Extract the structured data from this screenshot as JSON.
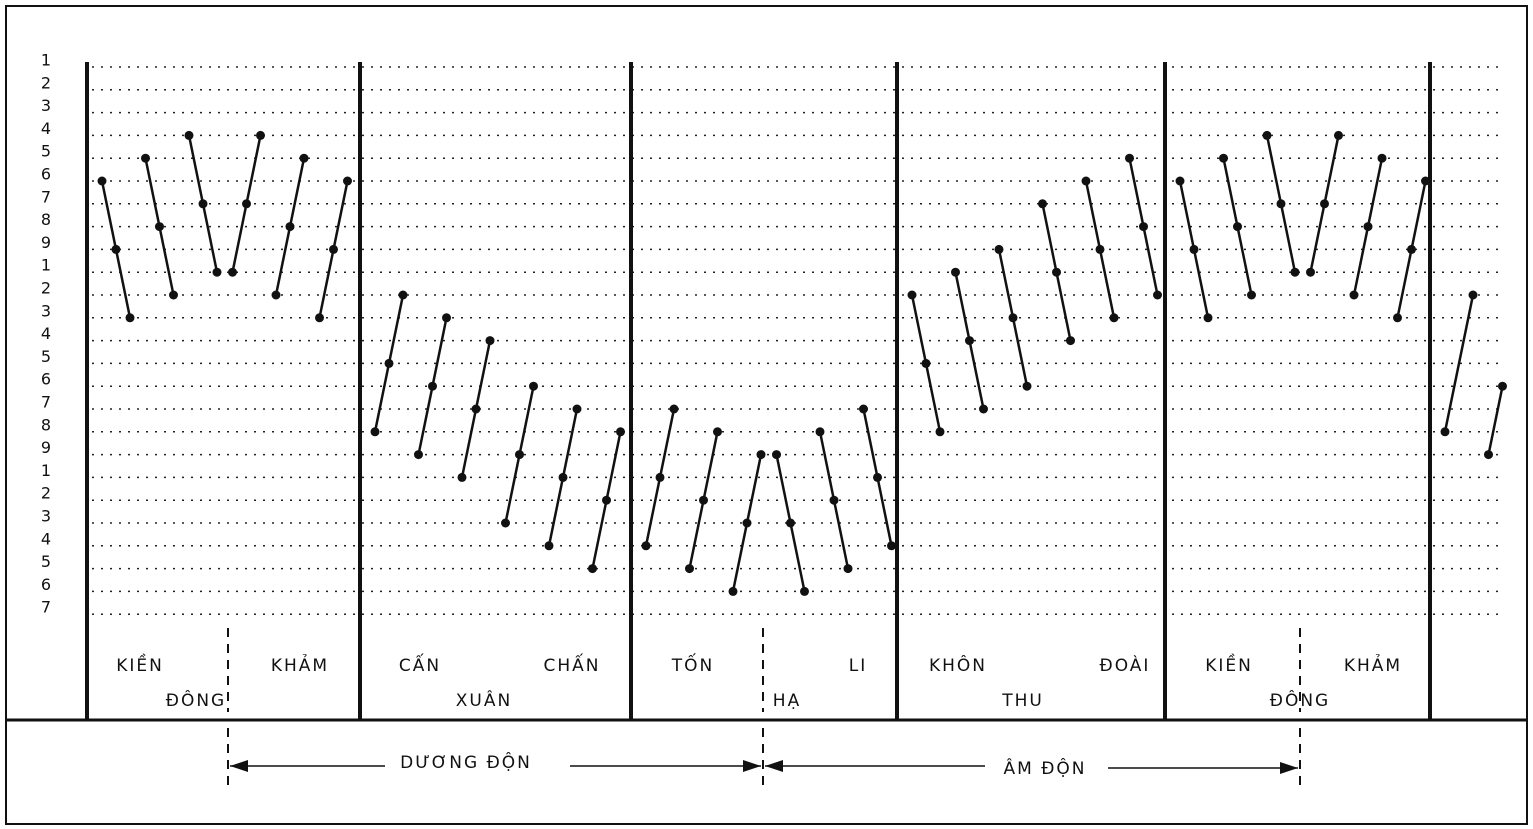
{
  "row_labels": [
    "1",
    "2",
    "3",
    "4",
    "5",
    "6",
    "7",
    "8",
    "9",
    "1",
    "2",
    "3",
    "4",
    "5",
    "6",
    "7",
    "8",
    "9",
    "1",
    "2",
    "3",
    "4",
    "5",
    "6",
    "7"
  ],
  "sections": [
    {
      "labels": [
        "KIỀN",
        "KHẢM"
      ],
      "season": "ĐÔNG",
      "segments": [
        [
          6,
          9,
          12
        ],
        [
          5,
          8,
          11
        ],
        [
          4,
          7,
          10
        ],
        [
          10,
          7,
          4
        ],
        [
          11,
          8,
          5
        ],
        [
          12,
          9,
          6
        ]
      ]
    },
    {
      "labels": [
        "CẤN",
        "CHẤN"
      ],
      "season": "XUÂN",
      "segments": [
        [
          17,
          14,
          11
        ],
        [
          18,
          15,
          12
        ],
        [
          19,
          16,
          13
        ],
        [
          21,
          18,
          15
        ],
        [
          22,
          19,
          16
        ],
        [
          23,
          20,
          17
        ]
      ]
    },
    {
      "labels": [
        "TỐN",
        "LI"
      ],
      "season": "HẠ",
      "segments": [
        [
          22,
          19,
          16
        ],
        [
          23,
          20,
          17
        ],
        [
          24,
          21,
          18
        ],
        [
          18,
          21,
          24
        ],
        [
          17,
          20,
          23
        ],
        [
          16,
          19,
          22
        ]
      ]
    },
    {
      "labels": [
        "KHÔN",
        "ĐOÀI"
      ],
      "season": "THU",
      "segments": [
        [
          11,
          14,
          17
        ],
        [
          10,
          13,
          16
        ],
        [
          9,
          12,
          15
        ],
        [
          7,
          10,
          13
        ],
        [
          6,
          9,
          12
        ],
        [
          5,
          8,
          11
        ]
      ]
    },
    {
      "labels": [
        "KIỀN",
        "KHẢM"
      ],
      "season": "ĐÔNG",
      "segments": [
        [
          6,
          9,
          12
        ],
        [
          5,
          8,
          11
        ],
        [
          4,
          7,
          10
        ],
        [
          10,
          7,
          4
        ],
        [
          11,
          8,
          5
        ],
        [
          12,
          9,
          6
        ]
      ]
    },
    {
      "segments": [
        [
          17,
          null,
          11
        ],
        [
          18,
          15,
          null
        ]
      ]
    }
  ],
  "periods": [
    "DƯƠNG ĐỘN",
    "ÂM ĐỘN"
  ]
}
